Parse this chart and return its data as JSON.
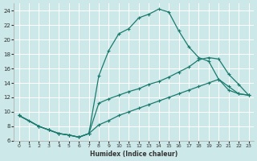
{
  "xlabel": "Humidex (Indice chaleur)",
  "bg_color": "#cce8e8",
  "grid_color": "#ffffff",
  "line_color": "#1a7a6e",
  "xlim": [
    -0.5,
    23.5
  ],
  "ylim": [
    6,
    25
  ],
  "yticks": [
    6,
    8,
    10,
    12,
    14,
    16,
    18,
    20,
    22,
    24
  ],
  "xticks": [
    0,
    1,
    2,
    3,
    4,
    5,
    6,
    7,
    8,
    9,
    10,
    11,
    12,
    13,
    14,
    15,
    16,
    17,
    18,
    19,
    20,
    21,
    22,
    23
  ],
  "line1_x": [
    0,
    1,
    2,
    3,
    4,
    5,
    6,
    7,
    8,
    9,
    10,
    11,
    12,
    13,
    14,
    15,
    16,
    17,
    18,
    19,
    20,
    21,
    22,
    23
  ],
  "line1_y": [
    9.5,
    8.8,
    8.0,
    7.5,
    7.0,
    6.8,
    6.5,
    7.0,
    15.0,
    18.5,
    20.8,
    21.5,
    23.0,
    23.5,
    24.2,
    23.8,
    21.2,
    19.0,
    17.5,
    17.0,
    14.5,
    13.5,
    12.5,
    12.3
  ],
  "line2_x": [
    0,
    2,
    3,
    4,
    5,
    6,
    7,
    8,
    9,
    10,
    11,
    12,
    13,
    14,
    15,
    16,
    17,
    18,
    19,
    20,
    21,
    22,
    23
  ],
  "line2_y": [
    9.5,
    8.0,
    7.5,
    7.0,
    6.8,
    6.5,
    7.0,
    11.2,
    11.8,
    12.3,
    12.8,
    13.2,
    13.8,
    14.2,
    14.8,
    15.5,
    16.2,
    17.2,
    17.5,
    17.3,
    15.2,
    13.8,
    12.3
  ],
  "line3_x": [
    0,
    2,
    3,
    4,
    5,
    6,
    7,
    8,
    9,
    10,
    11,
    12,
    13,
    14,
    15,
    16,
    17,
    18,
    19,
    20,
    21,
    22,
    23
  ],
  "line3_y": [
    9.5,
    8.0,
    7.5,
    7.0,
    6.8,
    6.5,
    7.0,
    8.2,
    8.8,
    9.5,
    10.0,
    10.5,
    11.0,
    11.5,
    12.0,
    12.5,
    13.0,
    13.5,
    14.0,
    14.5,
    13.0,
    12.5,
    12.3
  ]
}
